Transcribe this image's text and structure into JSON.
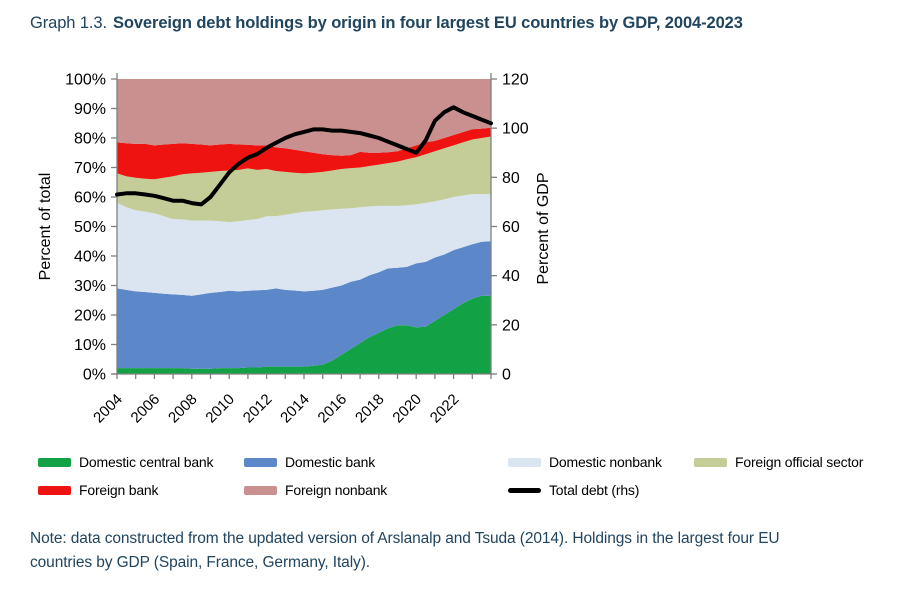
{
  "title": {
    "prefix": "Graph 1.3.",
    "text": "Sovereign debt holdings by origin in four largest EU countries by GDP, 2004-2023"
  },
  "note": {
    "lines": [
      "Note: data constructed from the updated version of Arslanalp and Tsuda (2014). Holdings in the largest four EU",
      "countries by GDP (Spain, France, Germany, Italy)."
    ]
  },
  "colors": {
    "green": "#12a245",
    "blue": "#5c87c9",
    "light_blue": "#dbe5f1",
    "olive": "#c4cd97",
    "red": "#ee1310",
    "mauve": "#ca8f8f",
    "line": "#000000",
    "axis": "#808080",
    "heading": "#21455f"
  },
  "legend": {
    "items": [
      {
        "label": "Domestic central bank",
        "color": "green",
        "swatch": "box",
        "row": 0
      },
      {
        "label": "Domestic bank",
        "color": "blue",
        "swatch": "box",
        "row": 0
      },
      {
        "label": "Domestic nonbank",
        "color": "light_blue",
        "swatch": "box",
        "row": 0
      },
      {
        "label": "Foreign official sector",
        "color": "olive",
        "swatch": "box",
        "row": 0
      },
      {
        "label": "Foreign bank",
        "color": "red",
        "swatch": "box",
        "row": 1
      },
      {
        "label": "Foreign nonbank",
        "color": "mauve",
        "swatch": "box",
        "row": 1
      },
      {
        "label": "Total debt (rhs)",
        "color": "line",
        "swatch": "line",
        "row": 1
      }
    ]
  },
  "chart_data": {
    "type": "area",
    "subtype": "stacked-area-with-line",
    "title": "Sovereign debt holdings by origin in four largest EU countries by GDP, 2004-2023",
    "left_axis": {
      "label": "Percent of total",
      "ticks": [
        0,
        10,
        20,
        30,
        40,
        50,
        60,
        70,
        80,
        90,
        100
      ],
      "suffix": "%",
      "range": [
        0,
        100
      ]
    },
    "right_axis": {
      "label": "Percent of GDP",
      "ticks": [
        0,
        20,
        40,
        60,
        80,
        100,
        120
      ],
      "suffix": "",
      "range": [
        0,
        120
      ]
    },
    "x_axis": {
      "labeled_years": [
        2004,
        2006,
        2008,
        2010,
        2012,
        2014,
        2016,
        2018,
        2020,
        2022
      ],
      "tick_every_years": 1,
      "range": [
        2004,
        2024
      ]
    },
    "legend_position": "bottom",
    "grid": false,
    "x": [
      2004,
      2004.5,
      2005,
      2005.5,
      2006,
      2006.5,
      2007,
      2007.5,
      2008,
      2008.5,
      2009,
      2009.5,
      2010,
      2010.5,
      2011,
      2011.5,
      2012,
      2012.5,
      2013,
      2013.5,
      2014,
      2014.5,
      2015,
      2015.5,
      2016,
      2016.5,
      2017,
      2017.5,
      2018,
      2018.5,
      2019,
      2019.5,
      2020,
      2020.5,
      2021,
      2021.5,
      2022,
      2022.5,
      2023,
      2023.5,
      2024
    ],
    "series": [
      {
        "name": "Domestic central bank",
        "color": "green",
        "axis": "left",
        "values": [
          2,
          2,
          2,
          2,
          2,
          2,
          2,
          2,
          1.8,
          1.8,
          1.8,
          2,
          2,
          2,
          2.2,
          2.2,
          2.5,
          2.5,
          2.5,
          2.5,
          2.5,
          2.8,
          3.2,
          4.5,
          6.5,
          8.5,
          10.5,
          12.5,
          14,
          15.5,
          16.5,
          16.5,
          15.8,
          16,
          18,
          20,
          22,
          24,
          25.5,
          26.5,
          26.5
        ]
      },
      {
        "name": "Domestic bank",
        "color": "blue",
        "axis": "left",
        "values": [
          27,
          26.5,
          26,
          25.8,
          25.5,
          25.2,
          25,
          24.8,
          24.7,
          25.2,
          25.7,
          25.8,
          26.2,
          26,
          26,
          26.2,
          26,
          26.5,
          26,
          25.8,
          25.5,
          25.4,
          25.3,
          24.8,
          23.5,
          22.8,
          21.5,
          21,
          20.5,
          20.3,
          19.5,
          19.8,
          21.7,
          22,
          21.5,
          20.5,
          20,
          19,
          18.5,
          18.3,
          18.5
        ]
      },
      {
        "name": "Domestic nonbank",
        "color": "light_blue",
        "axis": "left",
        "values": [
          29,
          28,
          27.5,
          27.2,
          27,
          26.3,
          25.5,
          25.6,
          25.5,
          25,
          24.5,
          24,
          23.3,
          23.8,
          24,
          24.1,
          25,
          24.5,
          25.5,
          26.2,
          27,
          27,
          27,
          26.5,
          26,
          24.9,
          24.5,
          23.3,
          22.5,
          21.2,
          21,
          20.9,
          20,
          20,
          19,
          18.7,
          18,
          17.5,
          17,
          16.2,
          16
        ]
      },
      {
        "name": "Foreign official sector",
        "color": "olive",
        "axis": "left",
        "values": [
          10,
          10.5,
          11,
          11.2,
          11.5,
          13,
          14.5,
          15.3,
          16,
          16.2,
          16.5,
          17,
          17.5,
          17.4,
          17.5,
          16.7,
          16,
          15.3,
          14.5,
          13.7,
          13,
          13,
          13,
          13.2,
          13.5,
          13.6,
          13.5,
          13.7,
          14,
          14.5,
          15,
          15.6,
          16,
          16.5,
          17,
          17.3,
          17.5,
          18,
          18.5,
          19,
          19.5
        ]
      },
      {
        "name": "Foreign bank",
        "color": "red",
        "axis": "left",
        "values": [
          10.5,
          11.2,
          11.5,
          11.8,
          11.5,
          11.3,
          11,
          10.5,
          10,
          9.6,
          9,
          9,
          9,
          8.6,
          8,
          8.3,
          8,
          8,
          8,
          7.8,
          7.5,
          6.8,
          6,
          5.2,
          4.5,
          4.4,
          5.3,
          4.5,
          4,
          3.7,
          3.5,
          3.7,
          4,
          4,
          3.5,
          3.5,
          3.5,
          3.5,
          3.5,
          3.2,
          3
        ]
      },
      {
        "name": "Foreign nonbank",
        "color": "mauve",
        "axis": "left",
        "values": [
          21.5,
          21.8,
          22,
          22,
          22.5,
          22.2,
          22,
          21.8,
          22,
          22.2,
          22.5,
          22.2,
          22,
          22.2,
          22.3,
          22.5,
          22.5,
          23.2,
          23.5,
          24,
          24.5,
          25,
          25.5,
          25.8,
          26,
          25.8,
          24.7,
          25,
          25,
          24.8,
          24.5,
          23.5,
          22.5,
          21.5,
          21,
          20,
          19,
          18,
          17,
          16.8,
          16.5
        ]
      }
    ],
    "line_series": {
      "name": "Total debt (rhs)",
      "color": "line",
      "axis": "right",
      "values": [
        73,
        73.5,
        73.5,
        73,
        72.5,
        71.5,
        70.5,
        70.5,
        69.5,
        69,
        72,
        77,
        82,
        85.5,
        88,
        89.5,
        92,
        94,
        96,
        97.5,
        98.5,
        99.5,
        99.5,
        99,
        99,
        98.5,
        98,
        97,
        96,
        94.5,
        93,
        91.5,
        90,
        95,
        103,
        106.5,
        108.5,
        106.5,
        105,
        103.5,
        102
      ]
    }
  }
}
